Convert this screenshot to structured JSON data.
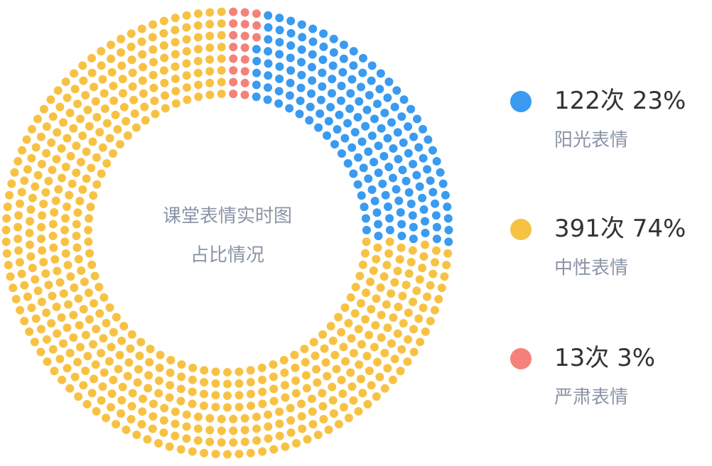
{
  "chart_data": {
    "type": "dot-donut",
    "title": "课堂表情实时图",
    "subtitle": "占比情况",
    "series": [
      {
        "name": "阳光表情",
        "color": "#3a9bf0",
        "values": [
          122
        ],
        "value_labels": [
          "122次"
        ],
        "percents": [
          23
        ],
        "percent_labels": [
          "23%"
        ]
      },
      {
        "name": "中性表情",
        "color": "#f7c244",
        "values": [
          391
        ],
        "value_labels": [
          "391次"
        ],
        "percents": [
          74
        ],
        "percent_labels": [
          "74%"
        ]
      },
      {
        "name": "严肃表情",
        "color": "#f4827a",
        "values": [
          13
        ],
        "value_labels": [
          "13次"
        ],
        "percents": [
          3
        ],
        "percent_labels": [
          "3%"
        ]
      }
    ]
  }
}
